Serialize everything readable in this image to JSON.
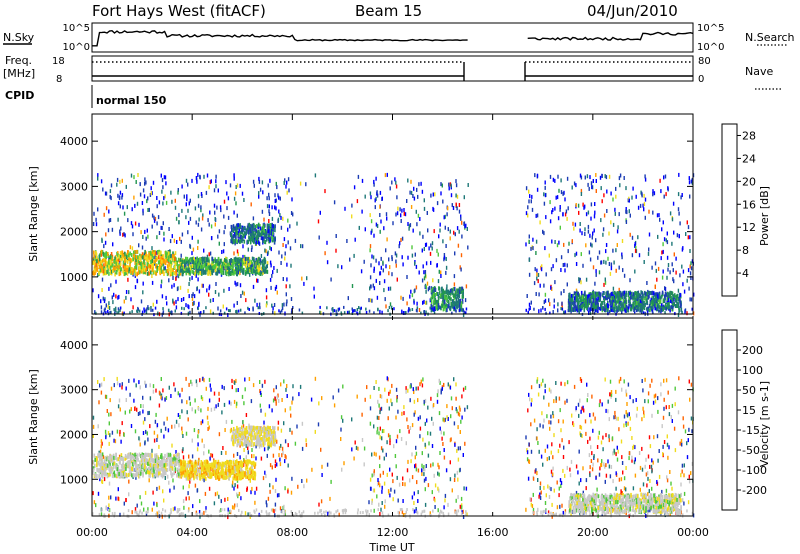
{
  "header": {
    "radar": "Fort Hays West (fitACF)",
    "beam": "Beam 15",
    "date": "04/Jun/2010"
  },
  "top_panels": {
    "nsky_label": "N.Sky",
    "nsky_ticks": [
      "10^5",
      "10^0"
    ],
    "nsearch_label": "N.Search",
    "freq_label_1": "Freq.",
    "freq_label_2": "[MHz]",
    "freq_ticks": [
      "18",
      "8"
    ],
    "nave_label": "Nave",
    "nave_ticks": [
      "80",
      "0"
    ],
    "cpid_label": "CPID",
    "cpid_value": "normal 150"
  },
  "colors": {
    "power": [
      "#0000ff",
      "#1c3cb4",
      "#1e7878",
      "#229650",
      "#50c83c",
      "#f0dc1e",
      "#ffa000",
      "#ff6400",
      "#ff0000"
    ],
    "velocity": [
      "#0000ff",
      "#1c3cb4",
      "#1e7878",
      "#50c83c",
      "#c8c8c8",
      "#f0dc1e",
      "#ffa000",
      "#ff6400",
      "#ff0000"
    ]
  },
  "chart_data": [
    {
      "type": "heatmap",
      "name": "power",
      "ylabel": "Slant Range [km]",
      "ylim": [
        180,
        4600
      ],
      "yticks": [
        "1000",
        "2000",
        "3000",
        "4000"
      ],
      "ytick_values": [
        1000,
        2000,
        3000,
        4000
      ],
      "colorbar_label": "Power [dB]",
      "colorbar_ticks": [
        "4",
        "8",
        "12",
        "16",
        "20",
        "24",
        "28"
      ],
      "colorbar_range": [
        0,
        30
      ],
      "data_gaps_hours": [
        [
          15.0,
          17.3
        ]
      ],
      "echo_bands": [
        {
          "start_h": 0.0,
          "end_h": 3.5,
          "range_km": [
            1100,
            1600
          ],
          "level": 18
        },
        {
          "start_h": 3.5,
          "end_h": 7.0,
          "range_km": [
            1100,
            1450
          ],
          "level": 12
        },
        {
          "start_h": 5.5,
          "end_h": 7.3,
          "range_km": [
            1800,
            2200
          ],
          "level": 8
        },
        {
          "start_h": 13.5,
          "end_h": 14.8,
          "range_km": [
            300,
            800
          ],
          "level": 10
        },
        {
          "start_h": 19.0,
          "end_h": 23.5,
          "range_km": [
            300,
            700
          ],
          "level": 8
        }
      ]
    },
    {
      "type": "heatmap",
      "name": "velocity",
      "ylabel": "Slant Range [km]",
      "ylim": [
        180,
        4600
      ],
      "yticks": [
        "1000",
        "2000",
        "3000",
        "4000"
      ],
      "ytick_values": [
        1000,
        2000,
        3000,
        4000
      ],
      "colorbar_label": "Velocity [m s-1]",
      "colorbar_ticks": [
        "200",
        "100",
        "50",
        "15",
        "-15",
        "-50",
        "-100",
        "-200"
      ],
      "colorbar_range": [
        -250,
        250
      ],
      "xlabel": "Time UT",
      "xticks": [
        "00:00",
        "04:00",
        "08:00",
        "12:00",
        "16:00",
        "20:00",
        "00:00"
      ],
      "xtick_hours": [
        0,
        4,
        8,
        12,
        16,
        20,
        24
      ],
      "echo_bands": [
        {
          "start_h": 0.0,
          "end_h": 3.5,
          "range_km": [
            1100,
            1600
          ],
          "level": 0
        },
        {
          "start_h": 3.5,
          "end_h": 6.5,
          "range_km": [
            1050,
            1450
          ],
          "level": -60
        },
        {
          "start_h": 5.5,
          "end_h": 7.3,
          "range_km": [
            1800,
            2200
          ],
          "level": -20
        },
        {
          "start_h": 19.0,
          "end_h": 23.5,
          "range_km": [
            300,
            700
          ],
          "level": 0
        }
      ]
    }
  ]
}
